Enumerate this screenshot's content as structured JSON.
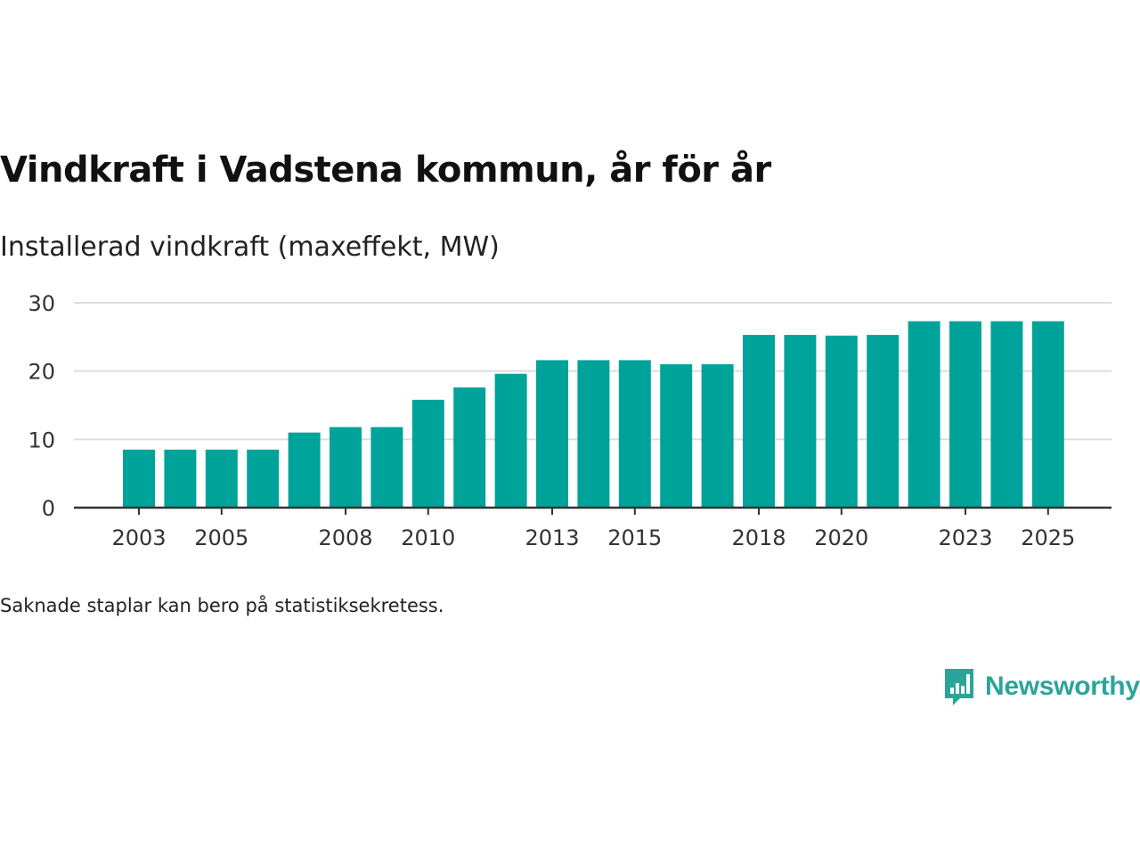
{
  "chart_data": {
    "type": "bar",
    "title": "Vindkraft i Vadstena kommun, år för år",
    "subtitle": "Installerad vindkraft (maxeffekt, MW)",
    "categories": [
      "2003",
      "2004",
      "2005",
      "2006",
      "2007",
      "2008",
      "2009",
      "2010",
      "2011",
      "2012",
      "2013",
      "2014",
      "2015",
      "2016",
      "2017",
      "2018",
      "2019",
      "2020",
      "2021",
      "2022",
      "2023",
      "2024",
      "2025"
    ],
    "values": [
      8.5,
      8.5,
      8.5,
      8.5,
      11,
      11.8,
      11.8,
      15.8,
      17.6,
      19.6,
      21.6,
      21.6,
      21.6,
      21,
      21,
      25.3,
      25.3,
      25.2,
      25.3,
      27.3,
      27.3,
      27.3,
      27.3
    ],
    "x_tick_labels": [
      "2003",
      "2005",
      "2008",
      "2010",
      "2013",
      "2015",
      "2018",
      "2020",
      "2023",
      "2025"
    ],
    "y_ticks": [
      0,
      10,
      20,
      30
    ],
    "ylim": [
      0,
      30
    ],
    "xlabel": "",
    "ylabel": "",
    "grid": true,
    "bar_color": "#00a39a",
    "note": "Saknade staplar kan bero på statistiksekretess."
  },
  "brand": {
    "name": "Newsworthy",
    "color": "#2aa59a",
    "icon": "newsworthy-logo-icon"
  }
}
